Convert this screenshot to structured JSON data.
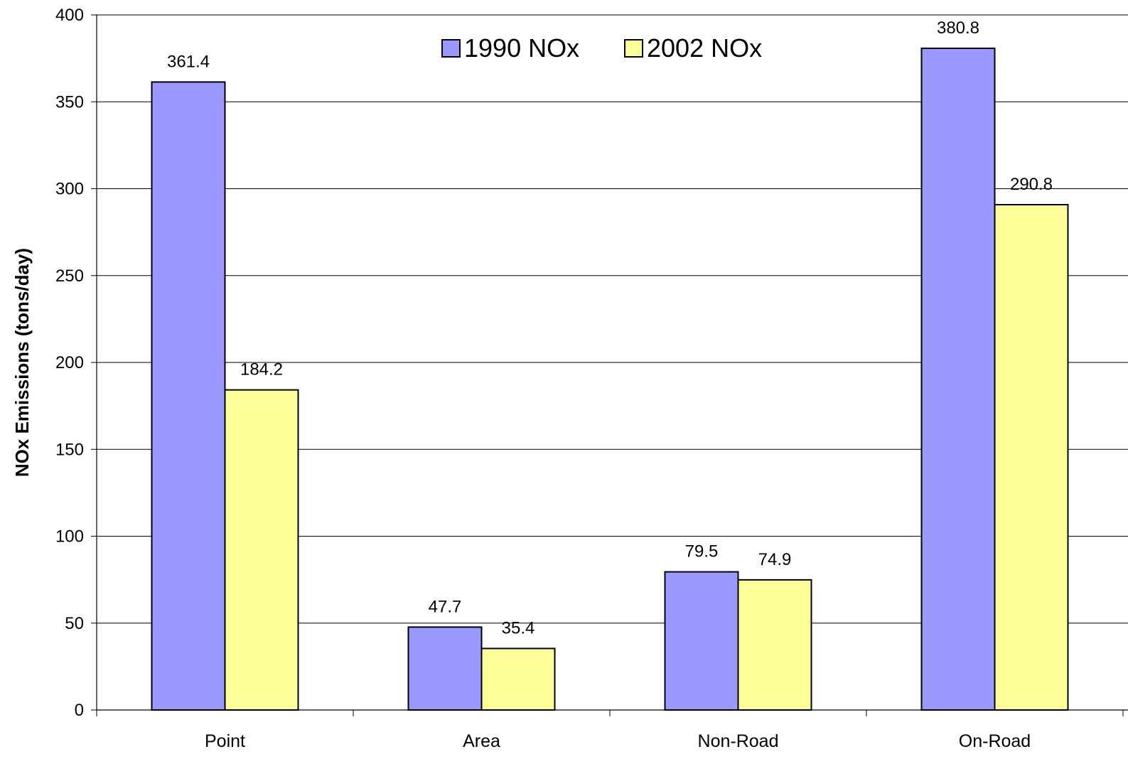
{
  "chart_data": {
    "type": "bar",
    "title": "",
    "xlabel": "",
    "ylabel": "NOx Emissions (tons/day)",
    "ylim": [
      0,
      400
    ],
    "yticks": [
      0,
      50,
      100,
      150,
      200,
      250,
      300,
      350,
      400
    ],
    "grid": true,
    "legend_position": "top-center",
    "categories": [
      "Point",
      "Area",
      "Non-Road",
      "On-Road"
    ],
    "series": [
      {
        "name": "1990 NOx",
        "color": "#9999FF",
        "values": [
          361.4,
          47.7,
          79.5,
          380.8
        ],
        "labels": [
          "361.4",
          "47.7",
          "79.5",
          "380.8"
        ]
      },
      {
        "name": "2002 NOx",
        "color": "#FFFF99",
        "values": [
          184.2,
          35.4,
          74.9,
          290.8
        ],
        "labels": [
          "184.2",
          "35.4",
          "74.9",
          "290.8"
        ]
      }
    ]
  }
}
